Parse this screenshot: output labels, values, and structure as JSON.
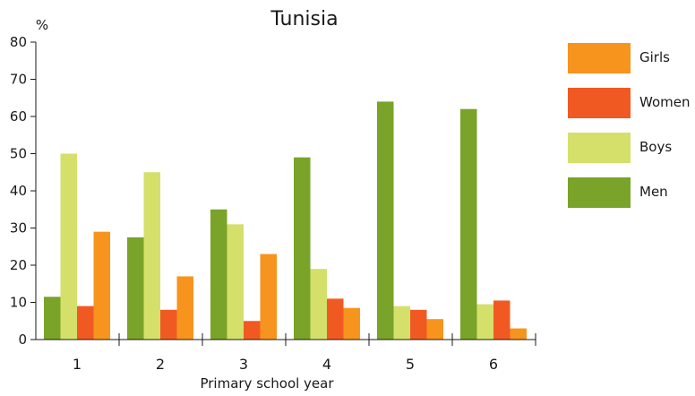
{
  "chart_data": {
    "type": "bar",
    "title": "Tunisia",
    "xlabel": "Primary school year",
    "ylabel": "%",
    "ylim": [
      0,
      80
    ],
    "yticks": [
      0,
      10,
      20,
      30,
      40,
      50,
      60,
      70,
      80
    ],
    "categories": [
      "1",
      "2",
      "3",
      "4",
      "5",
      "6"
    ],
    "series": [
      {
        "name": "Men",
        "color": "#7aa32a",
        "values": [
          11.5,
          27.5,
          35,
          49,
          64,
          62
        ]
      },
      {
        "name": "Boys",
        "color": "#d4e06a",
        "values": [
          50,
          45,
          31,
          19,
          9,
          9.5
        ]
      },
      {
        "name": "Women",
        "color": "#f05a22",
        "values": [
          9,
          8,
          5,
          11,
          8,
          10.5
        ]
      },
      {
        "name": "Girls",
        "color": "#f7941d",
        "values": [
          29,
          17,
          23,
          8.5,
          5.5,
          3
        ]
      }
    ],
    "legend_order": [
      "Girls",
      "Women",
      "Boys",
      "Men"
    ],
    "legend_position": "right",
    "grid": false
  }
}
